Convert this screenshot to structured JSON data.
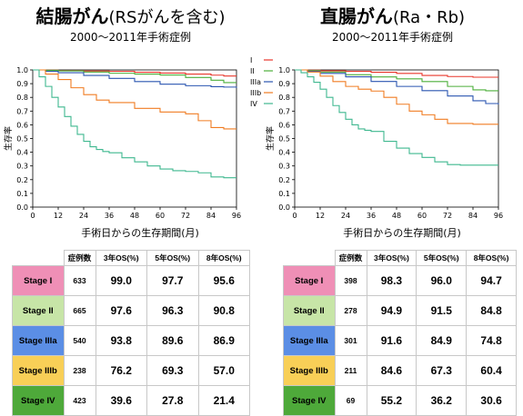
{
  "left": {
    "title_main": "結腸がん",
    "title_paren": "(RSがんを含む)",
    "subtitle": "2000～2011年手術症例",
    "table": {
      "headers": [
        "",
        "症例数",
        "3年OS(%)",
        "5年OS(%)",
        "8年OS(%)"
      ],
      "rows": [
        {
          "stage": "Stage I",
          "n": "633",
          "os3": "99.0",
          "os5": "97.7",
          "os8": "95.6"
        },
        {
          "stage": "Stage II",
          "n": "665",
          "os3": "97.6",
          "os5": "96.3",
          "os8": "90.8"
        },
        {
          "stage": "Stage IIIa",
          "n": "540",
          "os3": "93.8",
          "os5": "89.6",
          "os8": "86.9"
        },
        {
          "stage": "Stage IIIb",
          "n": "238",
          "os3": "76.2",
          "os5": "69.3",
          "os8": "57.0"
        },
        {
          "stage": "Stage IV",
          "n": "423",
          "os3": "39.6",
          "os5": "27.8",
          "os8": "21.4"
        }
      ]
    }
  },
  "right": {
    "title_main": "直腸がん",
    "title_paren": "(Ra・Rb)",
    "subtitle": "2000～2011年手術症例",
    "table": {
      "headers": [
        "",
        "症例数",
        "3年OS(%)",
        "5年OS(%)",
        "8年OS(%)"
      ],
      "rows": [
        {
          "stage": "Stage I",
          "n": "398",
          "os3": "98.3",
          "os5": "96.0",
          "os8": "94.7"
        },
        {
          "stage": "Stage II",
          "n": "278",
          "os3": "94.9",
          "os5": "91.5",
          "os8": "84.8"
        },
        {
          "stage": "Stage IIIa",
          "n": "301",
          "os3": "91.6",
          "os5": "84.9",
          "os8": "74.8"
        },
        {
          "stage": "Stage IIIb",
          "n": "211",
          "os3": "84.6",
          "os5": "67.3",
          "os8": "60.4"
        },
        {
          "stage": "Stage IV",
          "n": "69",
          "os3": "55.2",
          "os5": "36.2",
          "os8": "30.6"
        }
      ]
    }
  },
  "stage_colors": {
    "Stage I": "#ef8fb6",
    "Stage II": "#c7e5a7",
    "Stage IIIa": "#5b8ee5",
    "Stage IIIb": "#f8cf57",
    "Stage IV": "#4ea93a"
  },
  "chart_data": [
    {
      "type": "line",
      "xlabel": "手術日からの生存期間(月)",
      "ylabel": "生存率",
      "xlim": [
        0,
        96
      ],
      "ylim": [
        0,
        1
      ],
      "xticks": [
        0,
        12,
        24,
        36,
        48,
        60,
        72,
        84,
        96
      ],
      "yticks": [
        0,
        0.1,
        0.2,
        0.3,
        0.4,
        0.5,
        0.6,
        0.7,
        0.8,
        0.9,
        1.0
      ],
      "legend_position": "top-right",
      "series": [
        {
          "name": "I",
          "color": "#e8362a",
          "x": [
            0,
            6,
            12,
            24,
            36,
            48,
            60,
            72,
            84,
            90,
            96
          ],
          "y": [
            1,
            0.998,
            0.995,
            0.992,
            0.99,
            0.983,
            0.977,
            0.97,
            0.962,
            0.956,
            0.956
          ]
        },
        {
          "name": "II",
          "color": "#4caf3a",
          "x": [
            0,
            6,
            12,
            24,
            36,
            48,
            60,
            72,
            84,
            90,
            96
          ],
          "y": [
            1,
            0.997,
            0.993,
            0.985,
            0.976,
            0.97,
            0.963,
            0.945,
            0.925,
            0.908,
            0.908
          ]
        },
        {
          "name": "IIIa",
          "color": "#2a55b0",
          "x": [
            0,
            6,
            12,
            24,
            36,
            48,
            60,
            72,
            84,
            90,
            95,
            96
          ],
          "y": [
            1,
            0.99,
            0.98,
            0.96,
            0.938,
            0.915,
            0.896,
            0.885,
            0.878,
            0.875,
            0.875,
            0.869
          ]
        },
        {
          "name": "IIIb",
          "color": "#f07c22",
          "x": [
            0,
            6,
            12,
            18,
            24,
            30,
            36,
            48,
            60,
            72,
            78,
            84,
            90,
            96
          ],
          "y": [
            1,
            0.97,
            0.93,
            0.87,
            0.82,
            0.78,
            0.762,
            0.72,
            0.693,
            0.68,
            0.63,
            0.58,
            0.57,
            0.57
          ]
        },
        {
          "name": "IV",
          "color": "#3fb88f",
          "x": [
            0,
            3,
            6,
            9,
            12,
            15,
            18,
            21,
            24,
            27,
            30,
            33,
            36,
            42,
            48,
            54,
            60,
            66,
            72,
            78,
            84,
            90,
            96
          ],
          "y": [
            1,
            0.95,
            0.88,
            0.8,
            0.73,
            0.66,
            0.59,
            0.53,
            0.48,
            0.44,
            0.42,
            0.405,
            0.396,
            0.36,
            0.33,
            0.3,
            0.278,
            0.265,
            0.26,
            0.25,
            0.22,
            0.214,
            0.214
          ]
        }
      ]
    },
    {
      "type": "line",
      "xlabel": "手術日からの生存期間(月)",
      "ylabel": "生存率",
      "xlim": [
        0,
        96
      ],
      "ylim": [
        0,
        1
      ],
      "xticks": [
        0,
        12,
        24,
        36,
        48,
        60,
        72,
        84,
        96
      ],
      "yticks": [
        0,
        0.1,
        0.2,
        0.3,
        0.4,
        0.5,
        0.6,
        0.7,
        0.8,
        0.9,
        1.0
      ],
      "series": [
        {
          "name": "I",
          "color": "#e8362a",
          "x": [
            0,
            6,
            12,
            24,
            36,
            48,
            60,
            72,
            84,
            90,
            96
          ],
          "y": [
            1,
            0.998,
            0.994,
            0.99,
            0.983,
            0.975,
            0.96,
            0.952,
            0.947,
            0.947,
            0.947
          ]
        },
        {
          "name": "II",
          "color": "#4caf3a",
          "x": [
            0,
            6,
            12,
            24,
            36,
            48,
            60,
            72,
            84,
            90,
            96
          ],
          "y": [
            1,
            0.995,
            0.985,
            0.965,
            0.949,
            0.935,
            0.915,
            0.88,
            0.855,
            0.848,
            0.848
          ]
        },
        {
          "name": "IIIa",
          "color": "#2a55b0",
          "x": [
            0,
            6,
            12,
            24,
            36,
            48,
            60,
            72,
            84,
            90,
            96
          ],
          "y": [
            1,
            0.99,
            0.975,
            0.95,
            0.916,
            0.88,
            0.849,
            0.81,
            0.775,
            0.755,
            0.748
          ]
        },
        {
          "name": "IIIb",
          "color": "#f07c22",
          "x": [
            0,
            6,
            12,
            18,
            24,
            30,
            36,
            42,
            48,
            54,
            60,
            66,
            72,
            84,
            96
          ],
          "y": [
            1,
            0.985,
            0.955,
            0.915,
            0.88,
            0.86,
            0.846,
            0.8,
            0.75,
            0.7,
            0.673,
            0.64,
            0.61,
            0.604,
            0.604
          ]
        },
        {
          "name": "IV",
          "color": "#3fb88f",
          "x": [
            0,
            3,
            6,
            9,
            12,
            15,
            18,
            21,
            24,
            27,
            30,
            33,
            36,
            42,
            48,
            54,
            60,
            66,
            72,
            78,
            84,
            96
          ],
          "y": [
            1,
            0.98,
            0.95,
            0.91,
            0.86,
            0.8,
            0.74,
            0.69,
            0.64,
            0.6,
            0.57,
            0.56,
            0.552,
            0.48,
            0.43,
            0.39,
            0.362,
            0.33,
            0.31,
            0.306,
            0.306,
            0.306
          ]
        }
      ]
    }
  ]
}
